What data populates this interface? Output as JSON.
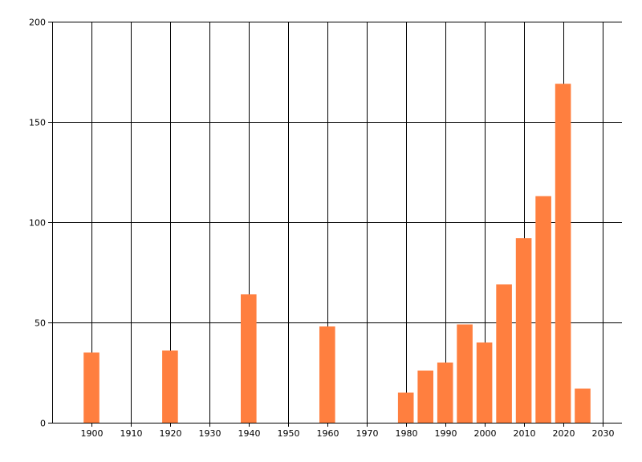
{
  "chart_data": {
    "type": "bar",
    "x": [
      1900,
      1920,
      1940,
      1960,
      1980,
      1985,
      1990,
      1995,
      2000,
      2005,
      2010,
      2015,
      2020,
      2025
    ],
    "values": [
      35,
      36,
      64,
      48,
      15,
      26,
      30,
      49,
      40,
      69,
      92,
      113,
      169,
      17
    ],
    "xlim": [
      1890,
      2035
    ],
    "ylim": [
      0,
      200
    ],
    "x_ticks": [
      "1900",
      "1910",
      "1920",
      "1930",
      "1940",
      "1950",
      "1960",
      "1970",
      "1980",
      "1990",
      "2000",
      "2010",
      "2020",
      "2030"
    ],
    "y_ticks": [
      "0",
      "50",
      "100",
      "150",
      "200"
    ],
    "grid": true,
    "title": "",
    "xlabel": "",
    "ylabel": "",
    "bar_color": "#ff7f3f",
    "grid_color": "#000000"
  }
}
